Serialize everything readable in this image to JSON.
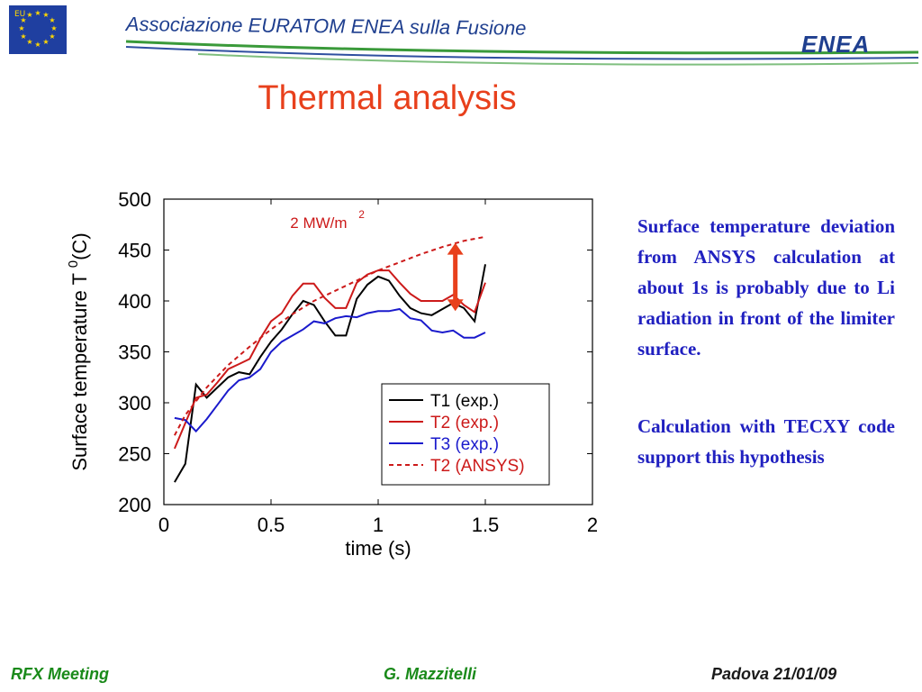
{
  "header": {
    "association": "Associazione EURATOM ENEA sulla Fusione",
    "logo_text": "ENEA",
    "flag_text": "EU"
  },
  "slide_title": "Thermal analysis",
  "notes": [
    "Surface temperature deviation from ANSYS calculation at about 1s is probably due to Li radiation in front of the limiter surface.",
    "Calculation with TECXY code support this hypothesis"
  ],
  "footer": {
    "left": "RFX Meeting",
    "center": "G. Mazzitelli",
    "right": "Padova 21/01/09"
  },
  "colors": {
    "title": "#e8401c",
    "notes": "#2020c0",
    "header_blue": "#1f3f8f",
    "swoosh_green": "#3a9a3a",
    "arrow": "#e8401c"
  },
  "chart_data": {
    "type": "line",
    "xlabel": "time (s)",
    "ylabel": "Surface temperature T",
    "ylabel_sup": "0",
    "ylabel_unit": "(C)",
    "xlim": [
      0,
      2
    ],
    "ylim": [
      200,
      500
    ],
    "x_ticks": [
      0,
      0.5,
      1,
      1.5,
      2
    ],
    "x_tick_labels": [
      "0",
      "0.5",
      "1",
      "1.5",
      "2"
    ],
    "y_ticks": [
      200,
      250,
      300,
      350,
      400,
      450,
      500
    ],
    "y_tick_labels": [
      "200",
      "250",
      "300",
      "350",
      "400",
      "450",
      "500"
    ],
    "grid": false,
    "legend_position": "bottom-right",
    "annotation": {
      "text": "2 MW/m",
      "sup": "2",
      "x": 0.85,
      "y": 478
    },
    "arrow": {
      "x": 1.36,
      "y_from": 390,
      "y_to": 457
    },
    "series": [
      {
        "name": "T1",
        "name_suffix": "(exp.)",
        "color": "#000000",
        "dash": "solid",
        "x": [
          0.05,
          0.1,
          0.15,
          0.2,
          0.25,
          0.3,
          0.35,
          0.4,
          0.45,
          0.5,
          0.55,
          0.6,
          0.65,
          0.7,
          0.75,
          0.8,
          0.85,
          0.9,
          0.95,
          1.0,
          1.05,
          1.1,
          1.15,
          1.2,
          1.25,
          1.3,
          1.35,
          1.4,
          1.45,
          1.5
        ],
        "y": [
          222,
          240,
          318,
          305,
          315,
          325,
          330,
          328,
          345,
          360,
          372,
          387,
          400,
          396,
          380,
          366,
          366,
          402,
          416,
          424,
          420,
          405,
          393,
          388,
          386,
          392,
          398,
          393,
          380,
          436
        ]
      },
      {
        "name": "T2",
        "name_suffix": "(exp.)",
        "color": "#cc1a1a",
        "dash": "solid",
        "x": [
          0.05,
          0.1,
          0.15,
          0.2,
          0.25,
          0.3,
          0.35,
          0.4,
          0.45,
          0.5,
          0.55,
          0.6,
          0.65,
          0.7,
          0.75,
          0.8,
          0.85,
          0.9,
          0.95,
          1.0,
          1.05,
          1.1,
          1.15,
          1.2,
          1.25,
          1.3,
          1.35,
          1.4,
          1.45,
          1.5
        ],
        "y": [
          255,
          280,
          305,
          308,
          320,
          333,
          338,
          343,
          363,
          380,
          388,
          405,
          417,
          417,
          403,
          393,
          393,
          418,
          426,
          430,
          430,
          418,
          407,
          400,
          400,
          400,
          406,
          396,
          389,
          418
        ]
      },
      {
        "name": "T3",
        "name_suffix": "(exp.)",
        "color": "#1a1acc",
        "dash": "solid",
        "x": [
          0.05,
          0.1,
          0.15,
          0.2,
          0.25,
          0.3,
          0.35,
          0.4,
          0.45,
          0.5,
          0.55,
          0.6,
          0.65,
          0.7,
          0.75,
          0.8,
          0.85,
          0.9,
          0.95,
          1.0,
          1.05,
          1.1,
          1.15,
          1.2,
          1.25,
          1.3,
          1.35,
          1.4,
          1.45,
          1.5
        ],
        "y": [
          285,
          283,
          272,
          284,
          298,
          312,
          322,
          325,
          333,
          350,
          360,
          366,
          372,
          380,
          378,
          383,
          385,
          384,
          388,
          390,
          390,
          392,
          383,
          381,
          371,
          369,
          371,
          364,
          364,
          369
        ]
      },
      {
        "name": "T2",
        "name_suffix": "(ANSYS)",
        "color": "#cc1a1a",
        "dash": "dashed",
        "x": [
          0.05,
          0.1,
          0.2,
          0.3,
          0.4,
          0.5,
          0.6,
          0.7,
          0.8,
          0.9,
          1.0,
          1.1,
          1.2,
          1.3,
          1.4,
          1.5
        ],
        "y": [
          268,
          288,
          315,
          337,
          355,
          372,
          387,
          400,
          410,
          420,
          430,
          438,
          446,
          453,
          459,
          463
        ]
      }
    ]
  }
}
